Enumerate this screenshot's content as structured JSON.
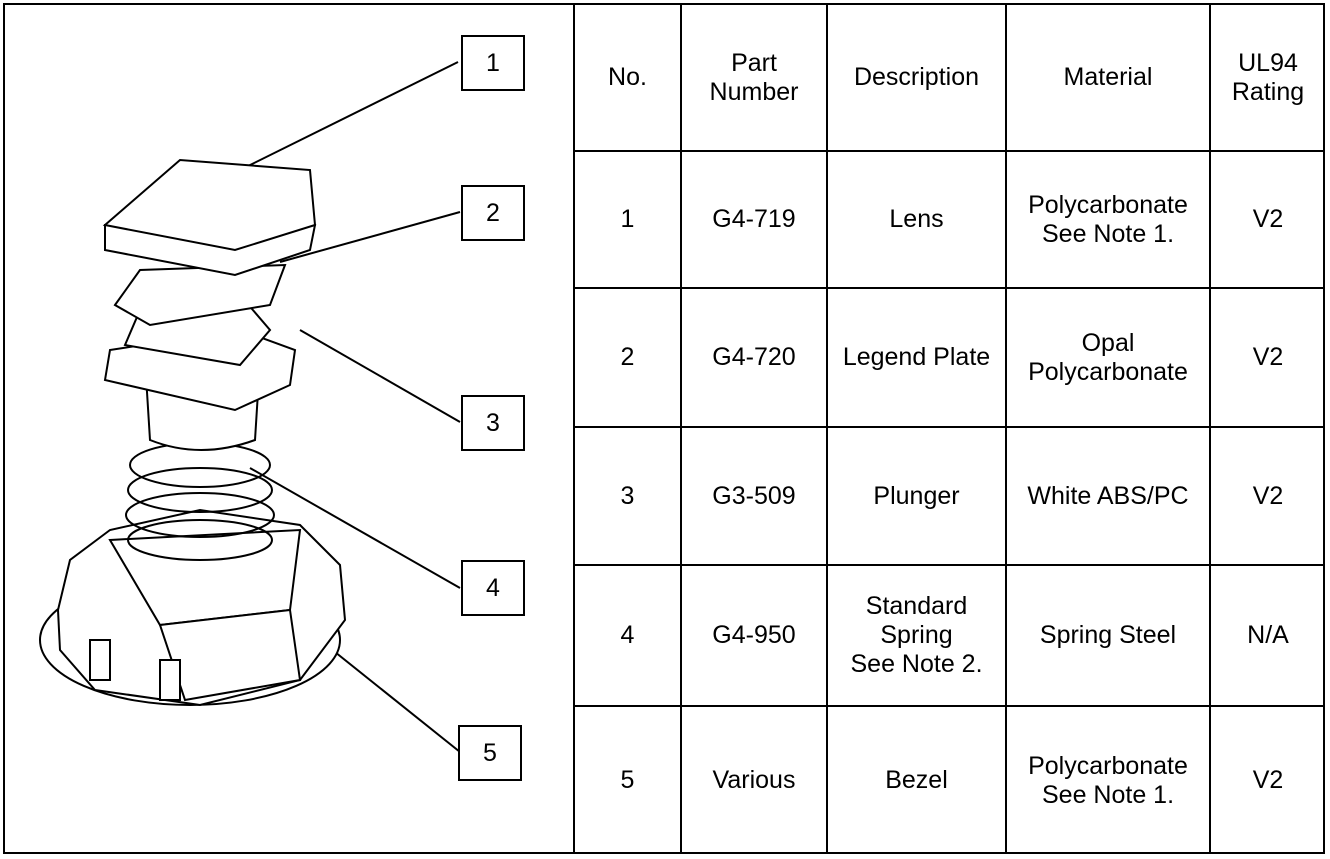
{
  "callouts": [
    "1",
    "2",
    "3",
    "4",
    "5"
  ],
  "table": {
    "header": [
      [
        "No."
      ],
      [
        "Part",
        "Number"
      ],
      [
        "Description"
      ],
      [
        "Material"
      ],
      [
        "UL94",
        "Rating"
      ]
    ],
    "rows": [
      [
        [
          "1"
        ],
        [
          "G4-719"
        ],
        [
          "Lens"
        ],
        [
          "Polycarbonate",
          "See Note 1."
        ],
        [
          "V2"
        ]
      ],
      [
        [
          "2"
        ],
        [
          "G4-720"
        ],
        [
          "Legend Plate"
        ],
        [
          "Opal",
          "Polycarbonate"
        ],
        [
          "V2"
        ]
      ],
      [
        [
          "3"
        ],
        [
          "G3-509"
        ],
        [
          "Plunger"
        ],
        [
          "White ABS/PC"
        ],
        [
          "V2"
        ]
      ],
      [
        [
          "4"
        ],
        [
          "G4-950"
        ],
        [
          "Standard",
          "Spring",
          "See Note 2."
        ],
        [
          "Spring Steel"
        ],
        [
          "N/A"
        ]
      ],
      [
        [
          "5"
        ],
        [
          "Various"
        ],
        [
          "Bezel"
        ],
        [
          "Polycarbonate",
          "See Note 1."
        ],
        [
          "V2"
        ]
      ]
    ]
  }
}
